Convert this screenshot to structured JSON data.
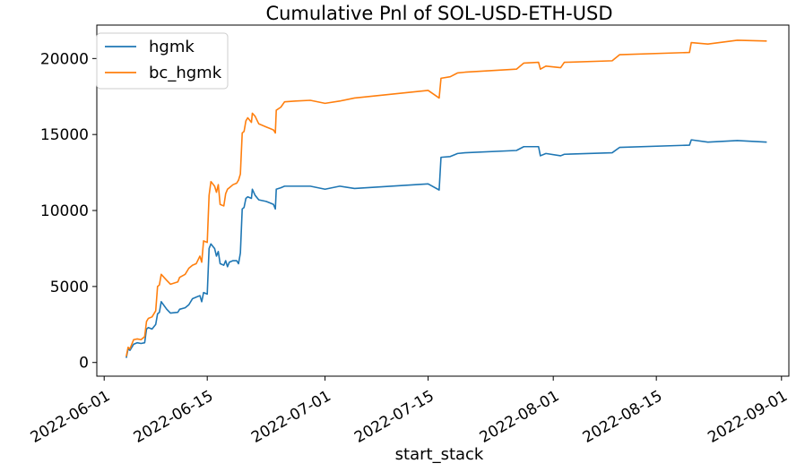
{
  "chart_data": {
    "type": "line",
    "title": "Cumulative Pnl of SOL-USD-ETH-USD",
    "xlabel": "start_stack",
    "ylabel": "",
    "x_is_date": true,
    "xlim": [
      "2022-05-31",
      "2022-09-02"
    ],
    "ylim": [
      -900,
      22200
    ],
    "x_ticks": [
      "2022-06-01",
      "2022-06-15",
      "2022-07-01",
      "2022-07-15",
      "2022-08-01",
      "2022-08-15",
      "2022-09-01"
    ],
    "y_ticks": [
      0,
      5000,
      10000,
      15000,
      20000
    ],
    "legend_position": "top-left",
    "grid": false,
    "series": [
      {
        "name": "hgmk",
        "color": "#1f77b4",
        "points": [
          [
            "2022-06-04T00:00",
            300
          ],
          [
            "2022-06-04T06:00",
            900
          ],
          [
            "2022-06-04T12:00",
            800
          ],
          [
            "2022-06-05T00:00",
            1200
          ],
          [
            "2022-06-05T12:00",
            1300
          ],
          [
            "2022-06-06T00:00",
            1250
          ],
          [
            "2022-06-06T12:00",
            1300
          ],
          [
            "2022-06-06T18:00",
            2200
          ],
          [
            "2022-06-07T00:00",
            2300
          ],
          [
            "2022-06-07T12:00",
            2200
          ],
          [
            "2022-06-08T00:00",
            2500
          ],
          [
            "2022-06-08T06:00",
            3200
          ],
          [
            "2022-06-08T12:00",
            3300
          ],
          [
            "2022-06-08T18:00",
            4000
          ],
          [
            "2022-06-09T12:00",
            3500
          ],
          [
            "2022-06-10T00:00",
            3250
          ],
          [
            "2022-06-11T00:00",
            3300
          ],
          [
            "2022-06-11T06:00",
            3500
          ],
          [
            "2022-06-12T00:00",
            3600
          ],
          [
            "2022-06-12T12:00",
            3800
          ],
          [
            "2022-06-13T00:00",
            4200
          ],
          [
            "2022-06-13T12:00",
            4300
          ],
          [
            "2022-06-14T00:00",
            4400
          ],
          [
            "2022-06-14T06:00",
            4000
          ],
          [
            "2022-06-14T12:00",
            4600
          ],
          [
            "2022-06-15T00:00",
            4500
          ],
          [
            "2022-06-15T06:00",
            7500
          ],
          [
            "2022-06-15T12:00",
            7800
          ],
          [
            "2022-06-16T00:00",
            7500
          ],
          [
            "2022-06-16T06:00",
            7000
          ],
          [
            "2022-06-16T12:00",
            7300
          ],
          [
            "2022-06-16T18:00",
            6500
          ],
          [
            "2022-06-17T06:00",
            6400
          ],
          [
            "2022-06-17T12:00",
            6700
          ],
          [
            "2022-06-17T18:00",
            6300
          ],
          [
            "2022-06-18T00:00",
            6600
          ],
          [
            "2022-06-18T12:00",
            6700
          ],
          [
            "2022-06-19T00:00",
            6700
          ],
          [
            "2022-06-19T06:00",
            6500
          ],
          [
            "2022-06-19T12:00",
            7200
          ],
          [
            "2022-06-19T18:00",
            10100
          ],
          [
            "2022-06-20T00:00",
            10200
          ],
          [
            "2022-06-20T06:00",
            10800
          ],
          [
            "2022-06-20T12:00",
            10900
          ],
          [
            "2022-06-21T00:00",
            10800
          ],
          [
            "2022-06-21T03:00",
            11400
          ],
          [
            "2022-06-21T12:00",
            11000
          ],
          [
            "2022-06-22T00:00",
            10700
          ],
          [
            "2022-06-23T00:00",
            10600
          ],
          [
            "2022-06-23T12:00",
            10500
          ],
          [
            "2022-06-24T00:00",
            10400
          ],
          [
            "2022-06-24T06:00",
            10100
          ],
          [
            "2022-06-24T09:00",
            11400
          ],
          [
            "2022-06-25T00:00",
            11500
          ],
          [
            "2022-06-25T12:00",
            11600
          ],
          [
            "2022-06-27T00:00",
            11600
          ],
          [
            "2022-06-29T00:00",
            11600
          ],
          [
            "2022-07-01T00:00",
            11400
          ],
          [
            "2022-07-03T00:00",
            11600
          ],
          [
            "2022-07-05T00:00",
            11450
          ],
          [
            "2022-07-15T00:00",
            11750
          ],
          [
            "2022-07-16T12:00",
            11350
          ],
          [
            "2022-07-16T18:00",
            13500
          ],
          [
            "2022-07-18T00:00",
            13550
          ],
          [
            "2022-07-19T00:00",
            13750
          ],
          [
            "2022-07-20T00:00",
            13800
          ],
          [
            "2022-07-27T00:00",
            13950
          ],
          [
            "2022-07-28T00:00",
            14200
          ],
          [
            "2022-07-30T00:00",
            14200
          ],
          [
            "2022-07-30T06:00",
            13600
          ],
          [
            "2022-07-31T00:00",
            13750
          ],
          [
            "2022-08-02T00:00",
            13600
          ],
          [
            "2022-08-02T12:00",
            13700
          ],
          [
            "2022-08-09T00:00",
            13800
          ],
          [
            "2022-08-10T00:00",
            14150
          ],
          [
            "2022-08-19T12:00",
            14300
          ],
          [
            "2022-08-19T18:00",
            14650
          ],
          [
            "2022-08-22T00:00",
            14500
          ],
          [
            "2022-08-26T00:00",
            14600
          ],
          [
            "2022-08-30T00:00",
            14500
          ]
        ]
      },
      {
        "name": "bc_hgmk",
        "color": "#ff7f0e",
        "points": [
          [
            "2022-06-04T00:00",
            400
          ],
          [
            "2022-06-04T06:00",
            1000
          ],
          [
            "2022-06-04T12:00",
            900
          ],
          [
            "2022-06-05T00:00",
            1500
          ],
          [
            "2022-06-05T12:00",
            1550
          ],
          [
            "2022-06-06T00:00",
            1500
          ],
          [
            "2022-06-06T12:00",
            1700
          ],
          [
            "2022-06-06T18:00",
            2700
          ],
          [
            "2022-06-07T00:00",
            2900
          ],
          [
            "2022-06-07T12:00",
            3000
          ],
          [
            "2022-06-08T00:00",
            3400
          ],
          [
            "2022-06-08T06:00",
            5000
          ],
          [
            "2022-06-08T12:00",
            5100
          ],
          [
            "2022-06-08T18:00",
            5800
          ],
          [
            "2022-06-09T12:00",
            5400
          ],
          [
            "2022-06-10T00:00",
            5150
          ],
          [
            "2022-06-11T00:00",
            5300
          ],
          [
            "2022-06-11T06:00",
            5600
          ],
          [
            "2022-06-12T00:00",
            5800
          ],
          [
            "2022-06-12T12:00",
            6200
          ],
          [
            "2022-06-13T00:00",
            6400
          ],
          [
            "2022-06-13T12:00",
            6500
          ],
          [
            "2022-06-14T00:00",
            7000
          ],
          [
            "2022-06-14T06:00",
            6600
          ],
          [
            "2022-06-14T12:00",
            8000
          ],
          [
            "2022-06-15T00:00",
            7900
          ],
          [
            "2022-06-15T06:00",
            11000
          ],
          [
            "2022-06-15T12:00",
            11900
          ],
          [
            "2022-06-16T00:00",
            11600
          ],
          [
            "2022-06-16T06:00",
            11200
          ],
          [
            "2022-06-16T12:00",
            11700
          ],
          [
            "2022-06-16T18:00",
            10400
          ],
          [
            "2022-06-17T06:00",
            10300
          ],
          [
            "2022-06-17T12:00",
            11100
          ],
          [
            "2022-06-17T18:00",
            11400
          ],
          [
            "2022-06-18T00:00",
            11500
          ],
          [
            "2022-06-18T12:00",
            11700
          ],
          [
            "2022-06-19T00:00",
            11800
          ],
          [
            "2022-06-19T06:00",
            12000
          ],
          [
            "2022-06-19T12:00",
            12400
          ],
          [
            "2022-06-19T18:00",
            15100
          ],
          [
            "2022-06-20T00:00",
            15200
          ],
          [
            "2022-06-20T06:00",
            15900
          ],
          [
            "2022-06-20T12:00",
            16100
          ],
          [
            "2022-06-21T00:00",
            15800
          ],
          [
            "2022-06-21T03:00",
            16400
          ],
          [
            "2022-06-21T12:00",
            16200
          ],
          [
            "2022-06-22T00:00",
            15700
          ],
          [
            "2022-06-23T00:00",
            15500
          ],
          [
            "2022-06-23T12:00",
            15400
          ],
          [
            "2022-06-24T00:00",
            15300
          ],
          [
            "2022-06-24T06:00",
            15100
          ],
          [
            "2022-06-24T09:00",
            16600
          ],
          [
            "2022-06-25T00:00",
            16800
          ],
          [
            "2022-06-25T12:00",
            17150
          ],
          [
            "2022-06-27T00:00",
            17200
          ],
          [
            "2022-06-29T00:00",
            17250
          ],
          [
            "2022-07-01T00:00",
            17050
          ],
          [
            "2022-07-03T00:00",
            17200
          ],
          [
            "2022-07-05T00:00",
            17400
          ],
          [
            "2022-07-15T00:00",
            17900
          ],
          [
            "2022-07-16T12:00",
            17400
          ],
          [
            "2022-07-16T18:00",
            18700
          ],
          [
            "2022-07-18T00:00",
            18800
          ],
          [
            "2022-07-19T00:00",
            19050
          ],
          [
            "2022-07-20T00:00",
            19100
          ],
          [
            "2022-07-27T00:00",
            19300
          ],
          [
            "2022-07-28T00:00",
            19700
          ],
          [
            "2022-07-30T00:00",
            19750
          ],
          [
            "2022-07-30T06:00",
            19300
          ],
          [
            "2022-07-31T00:00",
            19500
          ],
          [
            "2022-08-02T00:00",
            19400
          ],
          [
            "2022-08-02T12:00",
            19750
          ],
          [
            "2022-08-09T00:00",
            19850
          ],
          [
            "2022-08-10T00:00",
            20250
          ],
          [
            "2022-08-19T12:00",
            20400
          ],
          [
            "2022-08-19T18:00",
            21050
          ],
          [
            "2022-08-22T00:00",
            20950
          ],
          [
            "2022-08-26T00:00",
            21200
          ],
          [
            "2022-08-30T00:00",
            21150
          ]
        ]
      }
    ]
  }
}
